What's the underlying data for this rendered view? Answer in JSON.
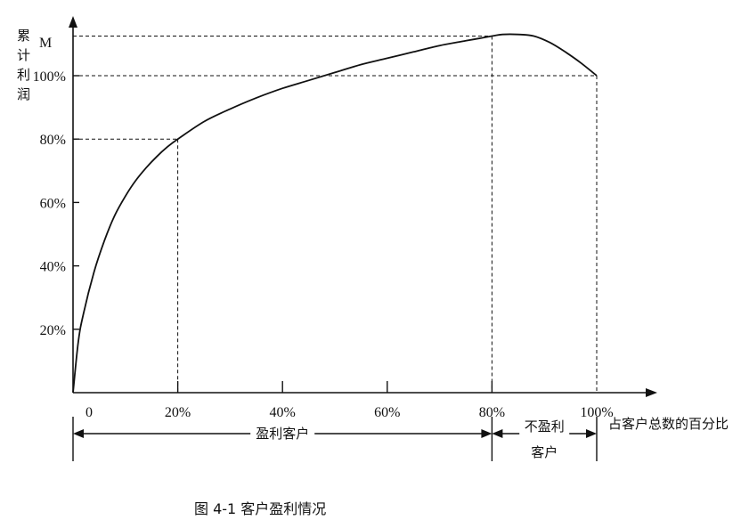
{
  "chart_data": {
    "type": "line",
    "ylabel": "累计利润",
    "y_max_label": "M",
    "xlabel": "占客户总数的百分比",
    "caption": "图 4-1  客户盈利情况",
    "x_ticks": [
      "0",
      "20%",
      "40%",
      "60%",
      "80%",
      "100%"
    ],
    "y_ticks": [
      "20%",
      "40%",
      "60%",
      "80%",
      "100%"
    ],
    "xlim": [
      0,
      100
    ],
    "ylim": [
      0,
      120
    ],
    "series": [
      {
        "x": [
          0,
          1,
          2,
          4,
          6,
          8,
          10,
          12,
          14,
          16,
          18,
          20,
          25,
          30,
          35,
          40,
          45,
          50,
          55,
          60,
          65,
          70,
          75,
          80,
          82,
          85,
          88,
          91,
          94,
          97,
          100
        ],
        "y": [
          0,
          16,
          25,
          38,
          48,
          56,
          62,
          67,
          71,
          74.5,
          77.5,
          80,
          85.5,
          89.5,
          93,
          96,
          98.5,
          101,
          103.5,
          105.5,
          107.5,
          109.5,
          111,
          112.5,
          113,
          113,
          112.5,
          110.5,
          107.5,
          104,
          100
        ]
      }
    ],
    "reference_points": [
      {
        "x": 20,
        "y": 80
      },
      {
        "x": 80,
        "y": 112.5
      },
      {
        "x": 100,
        "y": 100
      }
    ],
    "segments": [
      {
        "label": "盈利客户",
        "from": 0,
        "to": 80
      },
      {
        "label": "不盈利客户",
        "from": 80,
        "to": 100
      }
    ]
  }
}
